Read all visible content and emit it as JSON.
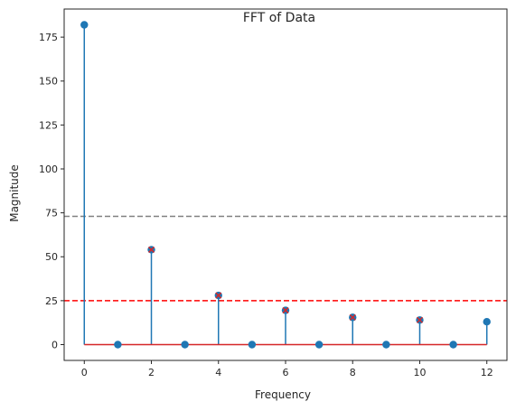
{
  "chart_data": {
    "type": "stem",
    "title": "FFT of Data",
    "xlabel": "Frequency",
    "ylabel": "Magnitude",
    "xlim": [
      -0.6,
      12.6
    ],
    "ylim": [
      -9,
      191
    ],
    "xticks": [
      0,
      2,
      4,
      6,
      8,
      10,
      12
    ],
    "yticks": [
      0,
      25,
      50,
      75,
      100,
      125,
      150,
      175
    ],
    "grid": false,
    "series": [
      {
        "x": [
          0,
          1,
          2,
          3,
          4,
          5,
          6,
          7,
          8,
          9,
          10,
          11,
          12
        ],
        "values": [
          182,
          0,
          54,
          0,
          28,
          0,
          19.5,
          0,
          15.5,
          0,
          14,
          0,
          13
        ],
        "color": "#1f77b4"
      }
    ],
    "peaks": {
      "x": [
        2,
        4,
        6,
        8,
        10
      ],
      "values": [
        54,
        28,
        19.5,
        15.5,
        14
      ],
      "marker": "x",
      "color": "#d62728"
    },
    "baseline": {
      "value": 0,
      "color": "#d62728"
    },
    "reference_lines": [
      {
        "y": 73,
        "color": "#808080",
        "style": "dashed"
      },
      {
        "y": 25,
        "color": "#ff0000",
        "style": "dashed"
      }
    ]
  }
}
